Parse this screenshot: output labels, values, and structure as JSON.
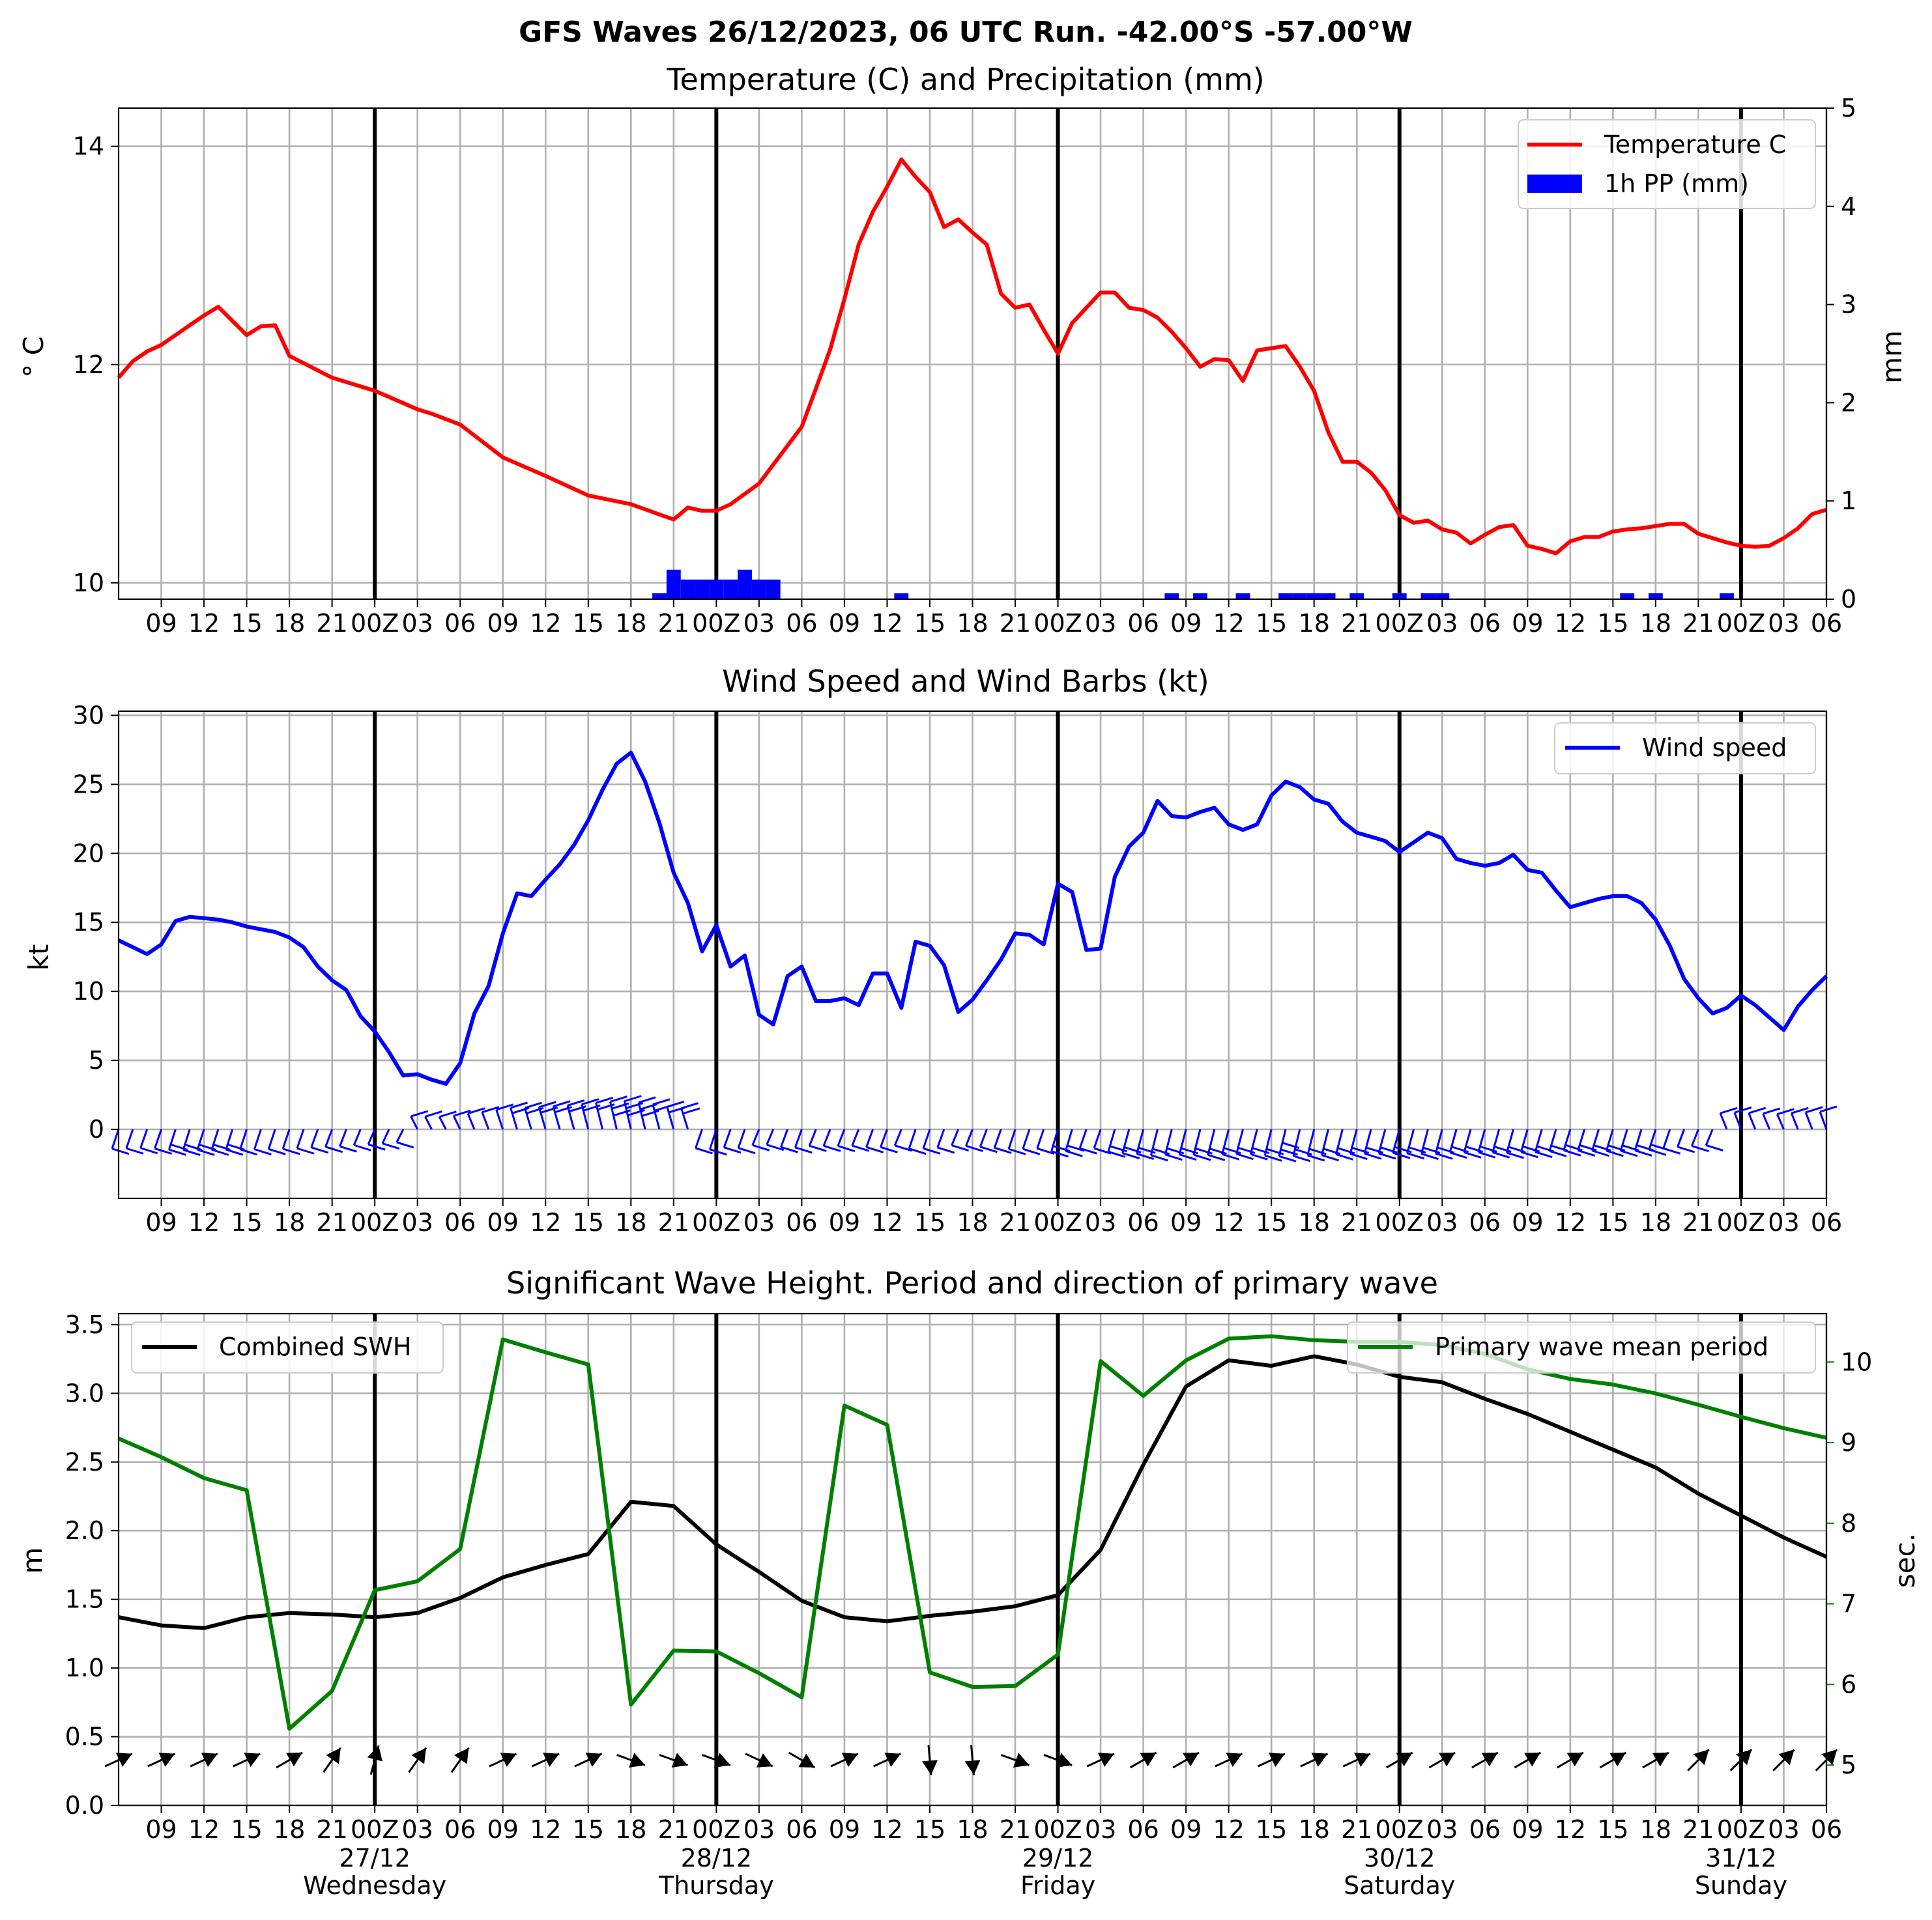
{
  "figure": {
    "suptitle": "GFS Waves 26/12/2023, 06 UTC Run. -42.00°S -57.00°W"
  },
  "colors": {
    "temperature": "#ff0000",
    "precip": "#0000ff",
    "wind": "#0000ff",
    "swh": "#000000",
    "period": "#008000",
    "grid": "#b0b0b0"
  },
  "time_axis": {
    "tick_labels": [
      "09",
      "12",
      "15",
      "18",
      "21",
      "00Z",
      "03",
      "06",
      "09",
      "12",
      "15",
      "18",
      "21",
      "00Z",
      "03",
      "06",
      "09",
      "12",
      "15",
      "18",
      "21",
      "00Z",
      "03",
      "06",
      "09",
      "12",
      "15",
      "18",
      "21",
      "00Z",
      "03",
      "06",
      "09",
      "12",
      "15",
      "18",
      "21",
      "00Z",
      "03",
      "06"
    ],
    "day_labels": [
      {
        "date": "27/12",
        "weekday": "Wednesday"
      },
      {
        "date": "28/12",
        "weekday": "Thursday"
      },
      {
        "date": "29/12",
        "weekday": "Friday"
      },
      {
        "date": "30/12",
        "weekday": "Saturday"
      },
      {
        "date": "31/12",
        "weekday": "Sunday"
      }
    ]
  },
  "chart_data": [
    {
      "type": "line",
      "title": "Temperature (C) and Precipitation (mm)",
      "ylabel": "° C",
      "y2label": "mm",
      "ylim": [
        9.85,
        14.35
      ],
      "y2lim": [
        0,
        5
      ],
      "yticks": [
        10,
        12,
        14
      ],
      "y2ticks": [
        0,
        1,
        2,
        3,
        4,
        5
      ],
      "legend_position": "top-right",
      "grid": true,
      "x_unit": "hours since 26/12 06 UTC",
      "series": [
        {
          "name": "Temperature C",
          "axis": "left",
          "x": [
            0,
            1,
            2,
            3,
            4,
            5,
            6,
            7,
            8,
            9,
            10,
            11,
            12,
            15,
            18,
            21,
            22,
            24,
            27,
            30,
            33,
            36,
            39,
            40,
            41,
            42,
            43,
            45,
            48,
            49,
            50,
            51,
            52,
            53,
            54,
            55,
            56,
            57,
            58,
            59,
            60,
            61,
            62,
            63,
            64,
            65,
            66,
            67,
            68,
            69,
            70,
            71,
            72,
            73,
            74,
            75,
            76,
            77,
            78,
            79,
            80,
            81,
            82,
            83,
            84,
            85,
            86,
            87,
            88,
            89,
            90,
            91,
            92,
            93,
            94,
            95,
            96,
            97,
            98,
            99,
            100,
            101,
            102,
            103,
            104,
            105,
            106,
            107,
            108,
            109,
            110,
            111,
            112,
            113,
            114,
            115,
            116,
            117,
            118,
            119,
            120
          ],
          "values": [
            11.88,
            12.03,
            12.12,
            12.18,
            12.27,
            12.36,
            12.45,
            12.53,
            12.4,
            12.27,
            12.35,
            12.36,
            12.08,
            11.88,
            11.76,
            11.59,
            11.55,
            11.45,
            11.15,
            10.98,
            10.8,
            10.72,
            10.58,
            10.69,
            10.66,
            10.66,
            10.72,
            10.91,
            11.43,
            11.78,
            12.14,
            12.6,
            13.1,
            13.4,
            13.63,
            13.88,
            13.72,
            13.58,
            13.26,
            13.33,
            13.21,
            13.1,
            12.65,
            12.52,
            12.55,
            12.32,
            12.1,
            12.38,
            12.52,
            12.66,
            12.66,
            12.52,
            12.5,
            12.43,
            12.3,
            12.15,
            11.98,
            12.05,
            12.04,
            11.85,
            12.13,
            12.15,
            12.17,
            11.98,
            11.76,
            11.38,
            11.11,
            11.11,
            11.01,
            10.85,
            10.62,
            10.55,
            10.57,
            10.49,
            10.46,
            10.36,
            10.44,
            10.51,
            10.53,
            10.34,
            10.31,
            10.27,
            10.38,
            10.42,
            10.42,
            10.47,
            10.49,
            10.5,
            10.52,
            10.54,
            10.54,
            10.45,
            10.41,
            10.37,
            10.34,
            10.33,
            10.34,
            10.41,
            10.5,
            10.63,
            10.67
          ]
        },
        {
          "name": "1h PP (mm)",
          "axis": "right",
          "type": "bar",
          "x": [
            38,
            39,
            40,
            41,
            42,
            43,
            44,
            45,
            46,
            55,
            74,
            76,
            79,
            82,
            83,
            84,
            85,
            87,
            90,
            92,
            93,
            106,
            108,
            113
          ],
          "values": [
            0.06,
            0.3,
            0.2,
            0.2,
            0.2,
            0.2,
            0.3,
            0.2,
            0.2,
            0.06,
            0.06,
            0.06,
            0.06,
            0.06,
            0.06,
            0.06,
            0.06,
            0.06,
            0.06,
            0.06,
            0.06,
            0.06,
            0.06,
            0.06
          ]
        }
      ]
    },
    {
      "type": "line",
      "title": "Wind Speed and Wind Barbs (kt)",
      "ylabel": "kt",
      "ylim": [
        -5,
        30.3
      ],
      "yticks": [
        0,
        5,
        10,
        15,
        20,
        25,
        30
      ],
      "legend_position": "top-right",
      "grid": true,
      "x_unit": "hours since 26/12 06 UTC",
      "series": [
        {
          "name": "Wind speed",
          "x": [
            0,
            1,
            2,
            3,
            4,
            5,
            6,
            7,
            8,
            9,
            10,
            11,
            12,
            13,
            14,
            15,
            16,
            17,
            18,
            19,
            20,
            21,
            22,
            23,
            24,
            25,
            26,
            27,
            28,
            29,
            30,
            31,
            32,
            33,
            34,
            35,
            36,
            37,
            38,
            39,
            40,
            41,
            42,
            43,
            44,
            45,
            46,
            47,
            48,
            49,
            50,
            51,
            52,
            53,
            54,
            55,
            56,
            57,
            58,
            59,
            60,
            61,
            62,
            63,
            64,
            65,
            66,
            67,
            68,
            69,
            70,
            71,
            72,
            73,
            74,
            75,
            76,
            77,
            78,
            79,
            80,
            81,
            82,
            83,
            84,
            85,
            86,
            87,
            88,
            89,
            90,
            91,
            92,
            93,
            94,
            95,
            96,
            97,
            98,
            99,
            100,
            101,
            102,
            103,
            104,
            105,
            106,
            107,
            108,
            109,
            110,
            111,
            112,
            113,
            114,
            115,
            116,
            117,
            118,
            119,
            120
          ],
          "values": [
            13.7,
            13.2,
            12.7,
            13.4,
            15.1,
            15.4,
            15.3,
            15.2,
            15.0,
            14.7,
            14.5,
            14.3,
            13.9,
            13.2,
            11.8,
            10.8,
            10.1,
            8.2,
            7.1,
            5.6,
            3.9,
            4.0,
            3.6,
            3.3,
            4.8,
            8.4,
            10.4,
            14.2,
            17.1,
            16.9,
            18.1,
            19.2,
            20.6,
            22.4,
            24.6,
            26.5,
            27.3,
            25.2,
            22.2,
            18.6,
            16.4,
            12.9,
            14.8,
            11.8,
            12.6,
            8.3,
            7.6,
            11.1,
            11.8,
            9.3,
            9.3,
            9.5,
            9.0,
            11.3,
            11.3,
            8.8,
            13.6,
            13.3,
            11.9,
            8.5,
            9.4,
            10.8,
            12.3,
            14.2,
            14.1,
            13.4,
            17.8,
            17.2,
            13.0,
            13.1,
            18.3,
            20.5,
            21.5,
            23.8,
            22.7,
            22.6,
            23.0,
            23.3,
            22.1,
            21.7,
            22.1,
            24.2,
            25.2,
            24.8,
            23.9,
            23.6,
            22.3,
            21.5,
            21.2,
            20.9,
            20.1,
            20.8,
            21.5,
            21.1,
            19.6,
            19.3,
            19.1,
            19.3,
            19.9,
            18.8,
            18.6,
            17.3,
            16.1,
            16.4,
            16.7,
            16.9,
            16.9,
            16.4,
            15.2,
            13.3,
            10.9,
            9.5,
            8.4,
            8.8,
            9.7,
            9.0,
            8.1,
            7.2,
            8.9,
            10.1,
            11.1
          ]
        }
      ]
    },
    {
      "type": "line",
      "title": "Significant Wave Height. Period and direction of primary wave",
      "ylabel": "m",
      "y2label": "sec.",
      "ylim": [
        0,
        3.58
      ],
      "y2lim": [
        4.5,
        10.6
      ],
      "yticks": [
        0.0,
        0.5,
        1.0,
        1.5,
        2.0,
        2.5,
        3.0,
        3.5
      ],
      "y2ticks": [
        5,
        6,
        7,
        8,
        9,
        10
      ],
      "legend_position": "top-left and top-right",
      "grid": true,
      "x_unit": "hours since 26/12 06 UTC",
      "series": [
        {
          "name": "Combined SWH",
          "axis": "left",
          "x": [
            0,
            3,
            6,
            9,
            12,
            15,
            18,
            21,
            24,
            27,
            30,
            33,
            36,
            39,
            42,
            45,
            48,
            51,
            54,
            57,
            60,
            63,
            66,
            69,
            72,
            75,
            78,
            81,
            84,
            87,
            90,
            93,
            96,
            99,
            102,
            105,
            108,
            111,
            114,
            117,
            120
          ],
          "values": [
            1.37,
            1.31,
            1.29,
            1.37,
            1.4,
            1.39,
            1.37,
            1.4,
            1.51,
            1.66,
            1.75,
            1.83,
            2.21,
            2.18,
            1.9,
            1.7,
            1.49,
            1.37,
            1.34,
            1.38,
            1.41,
            1.45,
            1.53,
            1.86,
            2.48,
            3.05,
            3.24,
            3.2,
            3.27,
            3.21,
            3.12,
            3.08,
            2.96,
            2.85,
            2.72,
            2.59,
            2.46,
            2.27,
            2.11,
            1.95,
            1.81
          ]
        },
        {
          "name": "Primary wave mean period",
          "axis": "right",
          "x": [
            0,
            3,
            6,
            9,
            12,
            15,
            18,
            21,
            24,
            27,
            30,
            33,
            36,
            39,
            42,
            45,
            48,
            51,
            54,
            57,
            60,
            63,
            66,
            69,
            72,
            75,
            78,
            81,
            84,
            87,
            90,
            93,
            96,
            99,
            102,
            105,
            108,
            111,
            114,
            117,
            120
          ],
          "values": [
            9.05,
            8.82,
            8.56,
            8.41,
            5.45,
            5.92,
            7.17,
            7.28,
            7.68,
            10.28,
            10.12,
            9.97,
            5.75,
            6.42,
            6.41,
            6.14,
            5.84,
            9.46,
            9.22,
            6.15,
            5.97,
            5.98,
            6.37,
            10.01,
            9.58,
            10.02,
            10.29,
            10.32,
            10.27,
            10.25,
            10.25,
            10.21,
            10.1,
            9.91,
            9.79,
            9.72,
            9.61,
            9.47,
            9.32,
            9.18,
            9.06
          ]
        }
      ],
      "wave_direction_arrows": {
        "x": [
          0,
          3,
          6,
          9,
          12,
          15,
          18,
          21,
          24,
          27,
          30,
          33,
          36,
          39,
          42,
          45,
          48,
          51,
          54,
          57,
          60,
          63,
          66,
          69,
          72,
          75,
          78,
          81,
          84,
          87,
          90,
          93,
          96,
          99,
          102,
          105,
          108,
          111,
          114,
          117,
          120
        ],
        "direction_deg": [
          245,
          245,
          245,
          245,
          240,
          215,
          195,
          215,
          215,
          245,
          245,
          245,
          290,
          290,
          290,
          295,
          300,
          245,
          245,
          355,
          355,
          290,
          290,
          245,
          240,
          240,
          245,
          245,
          245,
          245,
          240,
          240,
          240,
          240,
          240,
          240,
          240,
          225,
          225,
          225,
          225
        ]
      }
    }
  ]
}
